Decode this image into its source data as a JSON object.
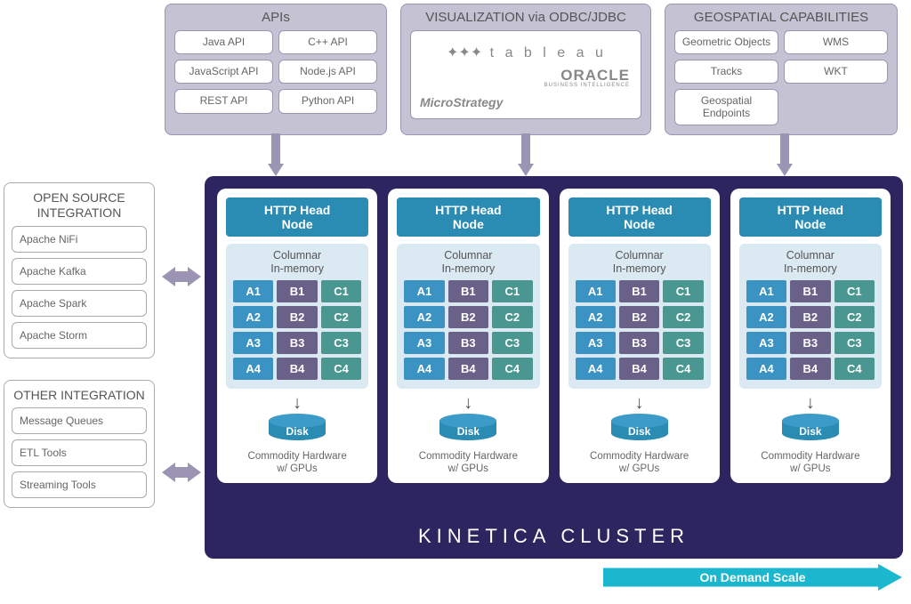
{
  "type": "architecture-diagram",
  "colors": {
    "panel_bg": "#c5c2d4",
    "panel_border": "#9b95b3",
    "cluster_bg": "#2d2560",
    "http_head_bg": "#2a8bb3",
    "memory_bg": "#dbe9f2",
    "cell_a": "#3b93c4",
    "cell_b": "#6a6189",
    "cell_c": "#4a9690",
    "disk_top": "#3d9bc9",
    "disk_body": "#2a8bb3",
    "ondemand_bg": "#1bb7cf",
    "arrow": "#9b95b3",
    "text": "#555555"
  },
  "top": {
    "apis": {
      "title": "APIs",
      "items": [
        "Java API",
        "C++ API",
        "JavaScript API",
        "Node.js API",
        "REST API",
        "Python API"
      ]
    },
    "viz": {
      "title": "VISUALIZATION via ODBC/JDBC",
      "logos": {
        "tableau": "t a b l e a u",
        "oracle": "ORACLE",
        "oracle_sub": "BUSINESS INTELLIGENCE",
        "microstrategy": "MicroStrategy"
      }
    },
    "geo": {
      "title": "GEOSPATIAL CAPABILITIES",
      "items": [
        "Geometric Objects",
        "WMS",
        "Tracks",
        "WKT",
        "Geospatial Endpoints",
        ""
      ]
    }
  },
  "left": {
    "open_source": {
      "title": "OPEN SOURCE INTEGRATION",
      "items": [
        "Apache NiFi",
        "Apache Kafka",
        "Apache Spark",
        "Apache Storm"
      ]
    },
    "other": {
      "title": "OTHER INTEGRATION",
      "items": [
        "Message Queues",
        "ETL Tools",
        "Streaming Tools"
      ]
    }
  },
  "cluster": {
    "title": "KINETICA  CLUSTER",
    "node_count": 4,
    "node": {
      "head": "HTTP Head Node",
      "memory_label": "Columnar In-memory",
      "cells": [
        [
          "A1",
          "B1",
          "C1"
        ],
        [
          "A2",
          "B2",
          "C2"
        ],
        [
          "A3",
          "B3",
          "C3"
        ],
        [
          "A4",
          "B4",
          "C4"
        ]
      ],
      "disk_label": "Disk",
      "hardware": "Commodity Hardware w/ GPUs"
    }
  },
  "ondemand": "On Demand Scale"
}
